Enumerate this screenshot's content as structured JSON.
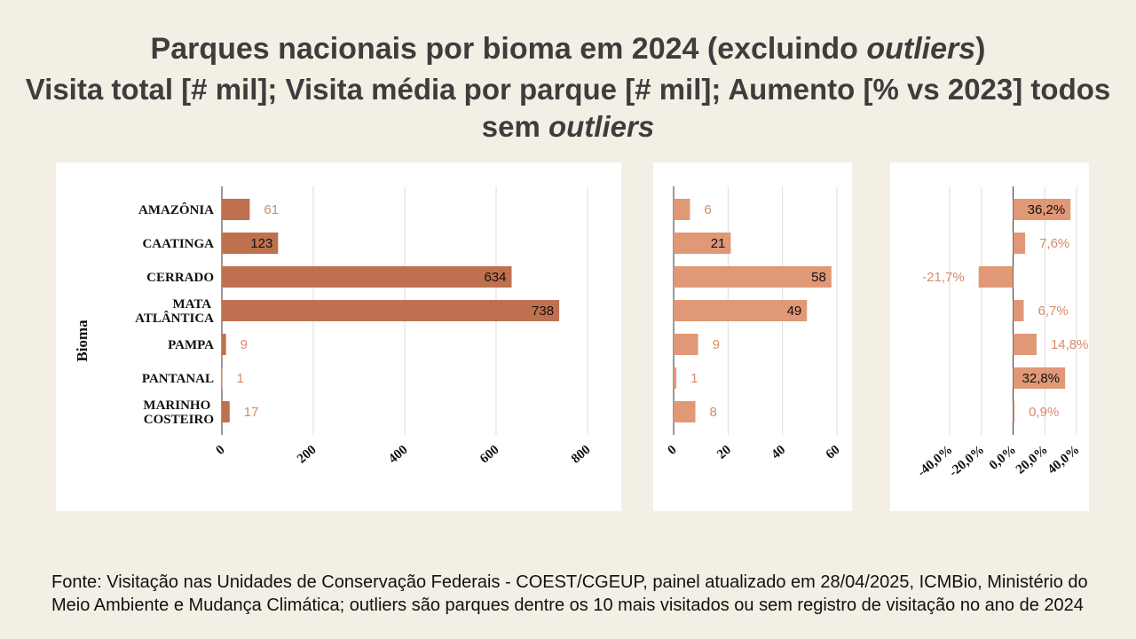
{
  "title_parts": [
    "Parques nacionais por bioma em 2024 (excluindo ",
    "outliers",
    ")"
  ],
  "subtitle_parts": [
    "Visita total [# mil]; Visita média por parque [# mil]; Aumento [% vs 2023] todos sem ",
    "outliers"
  ],
  "source": "Fonte: Visitação nas Unidades de Conservação Federais - COEST/CGEUP, painel atualizado em 28/04/2025, ICMBio, Ministério do Meio Ambiente e Mudança Climática; outliers são parques dentre os 10 mais visitados ou sem registro de visitação no ano de 2024",
  "chart_data": [
    {
      "type": "hbar",
      "y_label": "Bioma",
      "categories": [
        "AMAZÔNIA",
        "CAATINGA",
        "CERRADO",
        "MATA ATLÂNTICA",
        "PAMPA",
        "PANTANAL",
        "MARINHO COSTEIRO"
      ],
      "values": [
        61,
        123,
        634,
        738,
        9,
        1,
        17
      ],
      "color": "#bf714f",
      "xlim": [
        0,
        800
      ],
      "xticks": [
        0,
        200,
        400,
        600,
        800
      ],
      "grid": true
    },
    {
      "type": "hbar",
      "values": [
        6,
        21,
        58,
        49,
        9,
        1,
        8
      ],
      "color": "#e09877",
      "xlim": [
        0,
        60
      ],
      "xticks": [
        0,
        20,
        40,
        60
      ],
      "grid": true
    },
    {
      "type": "hbar",
      "values": [
        36.2,
        7.6,
        -21.7,
        6.7,
        14.8,
        32.8,
        0.9
      ],
      "value_labels": [
        "36,2%",
        "7,6%",
        "-21,7%",
        "6,7%",
        "14,8%",
        "32,8%",
        "0,9%"
      ],
      "color": "#e09877",
      "xlim": [
        -40,
        40
      ],
      "xticks": [
        {
          "value": -40,
          "label": "-40,0%"
        },
        {
          "value": -20,
          "label": "-20,0%"
        },
        {
          "value": 0,
          "label": "0,0%"
        },
        {
          "value": 20,
          "label": "20,0%"
        },
        {
          "value": 40,
          "label": "40,0%"
        }
      ],
      "grid": true
    }
  ]
}
